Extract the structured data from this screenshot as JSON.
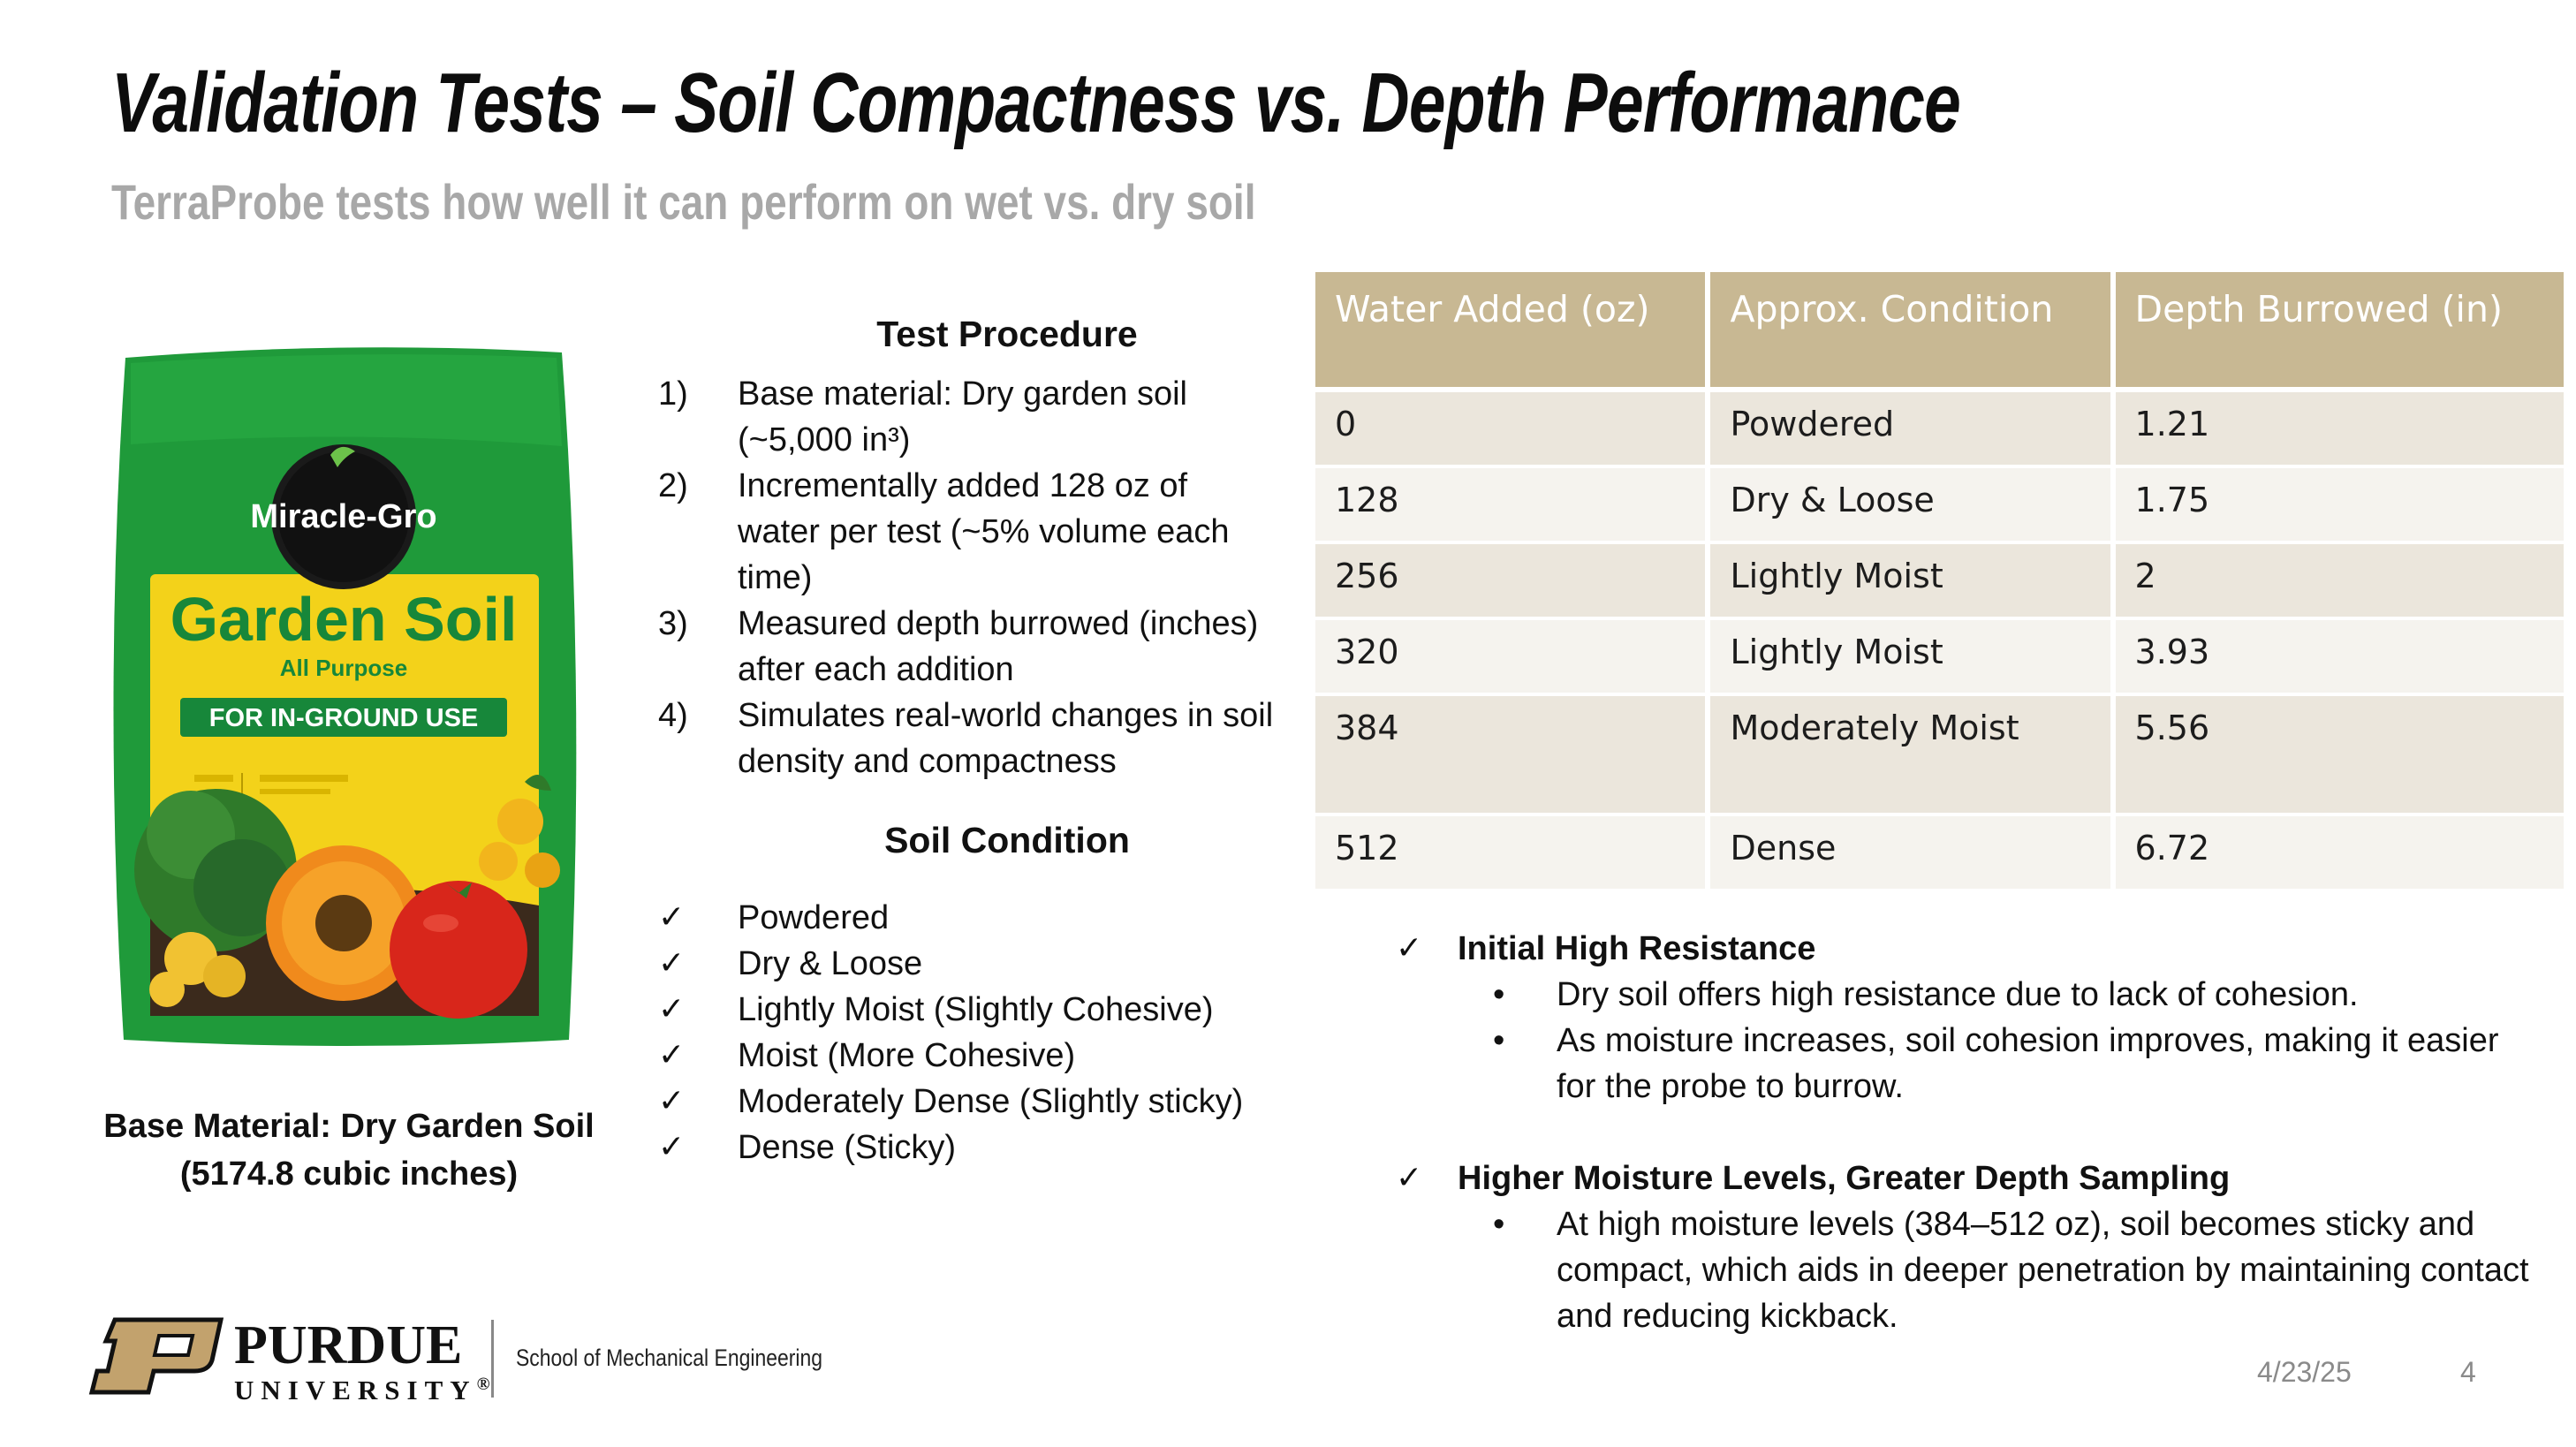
{
  "title": "Validation Tests – Soil Compactness vs. Depth Performance",
  "subtitle": "TerraProbe tests how well it can perform on wet vs. dry soil",
  "product": {
    "brand": "Miracle-Gro",
    "name": "Garden Soil",
    "tagline": "All Purpose",
    "band": "FOR IN-GROUND USE",
    "colors": {
      "bag_green": "#1f9a3a",
      "label_yellow": "#f3d21a",
      "band_green": "#17873a"
    }
  },
  "bag_caption": [
    "Base Material: Dry Garden Soil",
    "(5174.8 cubic inches)"
  ],
  "procedure": {
    "heading": "Test Procedure",
    "items": [
      {
        "num": "1)",
        "text": "Base material: Dry garden soil (~5,000 in³)"
      },
      {
        "num": "2)",
        "text": "Incrementally added 128 oz of water per test (~5% volume each time)"
      },
      {
        "num": "3)",
        "text": "Measured depth burrowed (inches) after each addition"
      },
      {
        "num": "4)",
        "text": "Simulates real-world changes in soil density and compactness"
      }
    ]
  },
  "soil_condition": {
    "heading": "Soil Condition",
    "items": [
      "Powdered",
      "Dry & Loose",
      "Lightly Moist (Slightly Cohesive)",
      "Moist (More Cohesive)",
      "Moderately Dense (Slightly sticky)",
      "Dense (Sticky)"
    ]
  },
  "table": {
    "headers": [
      "Water Added (oz)",
      "Approx. Condition",
      "Depth Burrowed (in)"
    ],
    "rows": [
      [
        "0",
        "Powdered",
        "1.21"
      ],
      [
        "128",
        "Dry & Loose",
        "1.75"
      ],
      [
        "256",
        "Lightly Moist",
        "2"
      ],
      [
        "320",
        "Lightly Moist",
        "3.93"
      ],
      [
        "384",
        "Moderately Moist",
        "5.56"
      ],
      [
        "512",
        "Dense",
        "6.72"
      ]
    ],
    "colors": {
      "header": "#c8b893",
      "row_odd": "#ebe6dc",
      "row_even": "#f5f3ee"
    }
  },
  "findings": [
    {
      "heading": "Initial High Resistance",
      "bullets": [
        "Dry soil offers high resistance due to lack of cohesion.",
        "As moisture increases, soil cohesion improves, making it easier for the probe to burrow."
      ]
    },
    {
      "heading": "Higher Moisture Levels, Greater Depth Sampling",
      "bullets": [
        "At high moisture levels (384–512 oz), soil becomes sticky and compact, which aids in deeper penetration by maintaining contact and reducing kickback."
      ]
    }
  ],
  "footer": {
    "brand_line1": "PURDUE",
    "brand_line2": "UNIVERSITY",
    "registered": "®",
    "school": "School of Mechanical Engineering",
    "date": "4/23/25",
    "page": "4",
    "logo_color": "#c2a26d"
  }
}
